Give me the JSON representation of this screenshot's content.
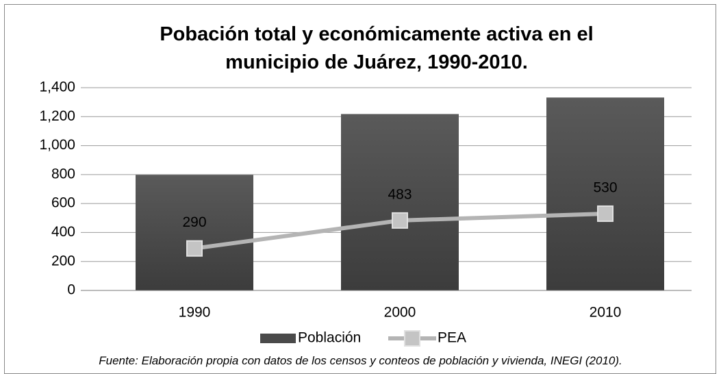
{
  "chart_data": {
    "type": "bar_line",
    "title": "Pobación total y económicamente activa en el municipio de Juárez, 1990-2010.",
    "categories": [
      "1990",
      "2000",
      "2010"
    ],
    "series": [
      {
        "name": "Población",
        "type": "bar",
        "color": "#4a4a4a",
        "values": [
          798,
          1218,
          1332
        ]
      },
      {
        "name": "PEA",
        "type": "line",
        "color": "#b4b4b4",
        "values": [
          290,
          483,
          530
        ]
      }
    ],
    "ylim": [
      0,
      1400
    ],
    "yticks": [
      0,
      200,
      400,
      600,
      800,
      {
        "value": 1000,
        "label": "1,000"
      },
      {
        "value": 1200,
        "label": "1,200"
      },
      {
        "value": 1400,
        "label": "1,400"
      }
    ],
    "grid": true,
    "legend": "bottom",
    "note": "Fuente: Elaboración propia con datos de los censos y conteos de población y vivienda, INEGI (2010)."
  }
}
